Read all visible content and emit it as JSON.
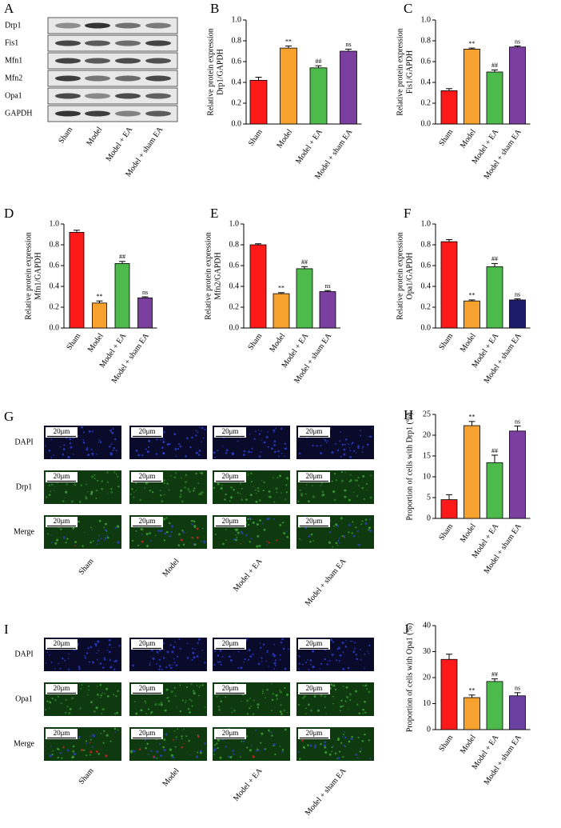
{
  "blot": {
    "panel": "A",
    "proteins": [
      "Drp1",
      "Fis1",
      "Mfn1",
      "Mfn2",
      "Opa1",
      "GAPDH"
    ],
    "groups": [
      "Sham",
      "Model",
      "Model + EA",
      "Model + sham EA"
    ]
  },
  "chart_data": [
    {
      "type": "bar",
      "panel": "B",
      "ylabel": [
        "Relative protein expression",
        "Drp1/GAPDH"
      ],
      "categories": [
        "Sham",
        "Model",
        "Model + EA",
        "Model + sham EA"
      ],
      "values": [
        0.42,
        0.73,
        0.54,
        0.7
      ],
      "errors": [
        0.03,
        0.02,
        0.02,
        0.02
      ],
      "significance": [
        null,
        "**",
        "##",
        "ns"
      ],
      "colors": [
        "#ff1a1a",
        "#f7a12e",
        "#4cbb4c",
        "#7b3fa0"
      ],
      "ylim": [
        0,
        1
      ],
      "yticks": [
        {
          "value": 0,
          "label": "0.0"
        },
        0.2,
        0.4,
        0.6,
        0.8,
        {
          "value": 1,
          "label": "1.0"
        }
      ]
    },
    {
      "type": "bar",
      "panel": "C",
      "ylabel": [
        "Relative protein expression",
        "Fis1/GAPDH"
      ],
      "categories": [
        "Sham",
        "Model",
        "Model + EA",
        "Model + sham EA"
      ],
      "values": [
        0.32,
        0.72,
        0.5,
        0.74
      ],
      "errors": [
        0.02,
        0.01,
        0.02,
        0.01
      ],
      "significance": [
        null,
        "**",
        "##",
        "ns"
      ],
      "colors": [
        "#ff1a1a",
        "#f7a12e",
        "#4cbb4c",
        "#7b3fa0"
      ],
      "ylim": [
        0,
        1
      ],
      "yticks": [
        {
          "value": 0,
          "label": "0.0"
        },
        0.2,
        0.4,
        0.6,
        0.8,
        {
          "value": 1,
          "label": "1.0"
        }
      ]
    },
    {
      "type": "bar",
      "panel": "D",
      "ylabel": [
        "Relative protein expression",
        "Mfn1/GAPDH"
      ],
      "categories": [
        "Sham",
        "Model",
        "Model + EA",
        "Model + sham EA"
      ],
      "values": [
        0.92,
        0.24,
        0.62,
        0.29
      ],
      "errors": [
        0.02,
        0.02,
        0.02,
        0.01
      ],
      "significance": [
        null,
        "**",
        "##",
        "ns"
      ],
      "colors": [
        "#ff1a1a",
        "#f7a12e",
        "#4cbb4c",
        "#7b3fa0"
      ],
      "ylim": [
        0,
        1
      ],
      "yticks": [
        {
          "value": 0,
          "label": "0.0"
        },
        0.2,
        0.4,
        0.6,
        0.8,
        {
          "value": 1,
          "label": "1.0"
        }
      ]
    },
    {
      "type": "bar",
      "panel": "E",
      "ylabel": [
        "Relative protein expression",
        "Mfn2/GAPDH"
      ],
      "categories": [
        "Sham",
        "Model",
        "Model + EA",
        "Model + sham EA"
      ],
      "values": [
        0.8,
        0.33,
        0.57,
        0.35
      ],
      "errors": [
        0.01,
        0.01,
        0.02,
        0.01
      ],
      "significance": [
        null,
        "**",
        "##",
        "ns"
      ],
      "colors": [
        "#ff1a1a",
        "#f7a12e",
        "#4cbb4c",
        "#7b3fa0"
      ],
      "ylim": [
        0,
        1
      ],
      "yticks": [
        {
          "value": 0,
          "label": "0.0"
        },
        0.2,
        0.4,
        0.6,
        0.8,
        {
          "value": 1,
          "label": "1.0"
        }
      ]
    },
    {
      "type": "bar",
      "panel": "F",
      "ylabel": [
        "Relative protein expression",
        "Opa1/GAPDH"
      ],
      "categories": [
        "Sham",
        "Model",
        "Model + EA",
        "Model + sham EA"
      ],
      "values": [
        0.83,
        0.26,
        0.59,
        0.27
      ],
      "errors": [
        0.02,
        0.01,
        0.03,
        0.01
      ],
      "significance": [
        null,
        "**",
        "##",
        "ns"
      ],
      "colors": [
        "#ff1a1a",
        "#f7a12e",
        "#4cbb4c",
        "#1c1c6b"
      ],
      "ylim": [
        0,
        1
      ],
      "yticks": [
        {
          "value": 0,
          "label": "0.0"
        },
        0.2,
        0.4,
        0.6,
        0.8,
        {
          "value": 1,
          "label": "1.0"
        }
      ]
    },
    {
      "type": "bar",
      "panel": "H",
      "ylabel": [
        "Proportion of cells with Drp1 (%)"
      ],
      "categories": [
        "Sham",
        "Model",
        "Model + EA",
        "Model + sham EA"
      ],
      "values": [
        4.5,
        22.3,
        13.4,
        21.0
      ],
      "errors": [
        1.2,
        1.0,
        1.8,
        1.2
      ],
      "significance": [
        null,
        "**",
        "##",
        "ns"
      ],
      "colors": [
        "#ff1a1a",
        "#f7a12e",
        "#4cbb4c",
        "#7b3fa0"
      ],
      "ylim": [
        0,
        25
      ],
      "yticks": [
        0,
        5,
        10,
        15,
        20,
        25
      ]
    },
    {
      "type": "bar",
      "panel": "J",
      "ylabel": [
        "Proportion of cells with Opa1 (%)"
      ],
      "categories": [
        "Sham",
        "Model",
        "Model + EA",
        "Model + sham EA"
      ],
      "values": [
        27,
        12.3,
        18.5,
        13
      ],
      "errors": [
        2,
        1,
        1,
        1.2
      ],
      "significance": [
        null,
        "**",
        "##",
        "ns"
      ],
      "colors": [
        "#ff1a1a",
        "#f7a12e",
        "#4cbb4c",
        "#6a40a0"
      ],
      "ylim": [
        0,
        40
      ],
      "yticks": [
        0,
        10,
        20,
        30,
        40
      ]
    }
  ],
  "micrographs": [
    {
      "panel": "G",
      "rows": [
        "DAPI",
        "Drp1",
        "Merge"
      ],
      "groups": [
        "Sham",
        "Model",
        "Model + EA",
        "Model + sham EA"
      ],
      "scale_bar": "20μm"
    },
    {
      "panel": "I",
      "rows": [
        "DAPI",
        "Opa1",
        "Merge"
      ],
      "groups": [
        "Sham",
        "Model",
        "Model + EA",
        "Model + sham EA"
      ],
      "scale_bar": "20μm"
    }
  ]
}
